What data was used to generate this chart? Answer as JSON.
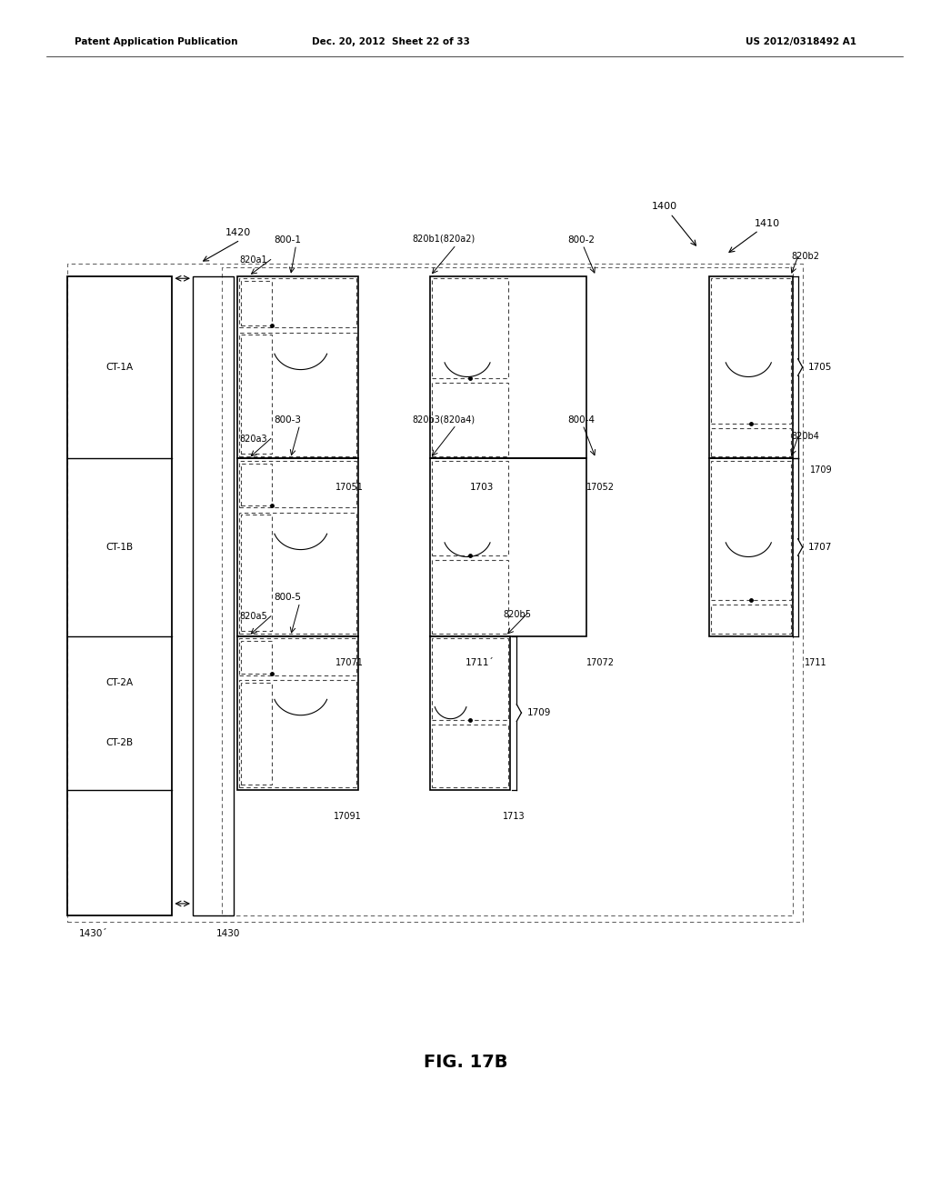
{
  "header_left": "Patent Application Publication",
  "header_mid": "Dec. 20, 2012  Sheet 22 of 33",
  "header_right": "US 2012/0318492 A1",
  "fig_label": "FIG. 17B",
  "bg_color": "#ffffff",
  "line_color": "#000000",
  "dashed_color": "#555555"
}
